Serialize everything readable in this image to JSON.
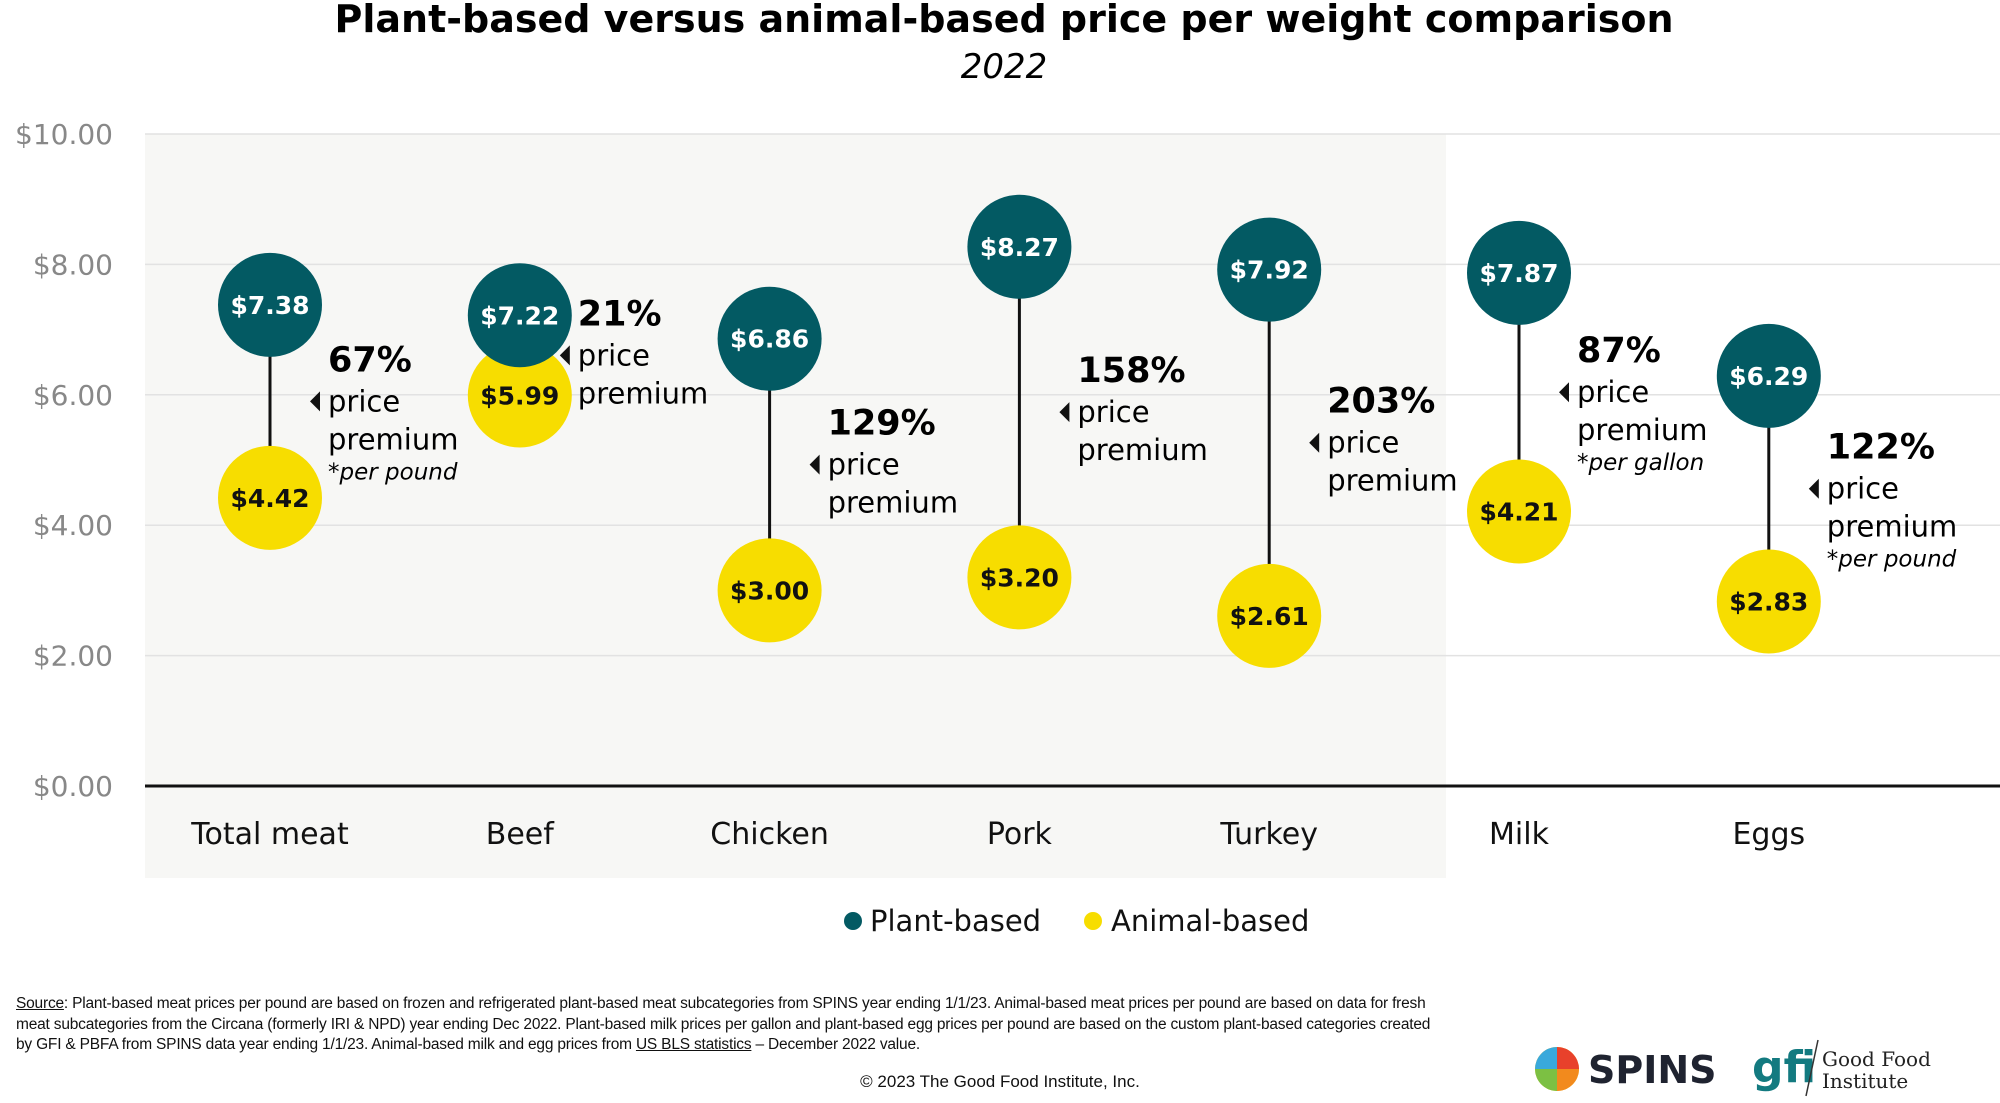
{
  "chart_data": {
    "type": "dumbbell",
    "title": "Plant-based versus animal-based price per weight comparison",
    "subtitle": "2022",
    "ylim": [
      0,
      10
    ],
    "yticks": [
      "$0.00",
      "$2.00",
      "$4.00",
      "$6.00",
      "$8.00",
      "$10.00"
    ],
    "grid": true,
    "legend_placement": "bottom",
    "categories": [
      "Total meat",
      "Beef",
      "Chicken",
      "Pork",
      "Turkey",
      "Milk",
      "Eggs"
    ],
    "series": [
      {
        "name": "Plant-based",
        "color": "#035a63",
        "values": [
          7.38,
          7.22,
          6.86,
          8.27,
          7.92,
          7.87,
          6.29
        ],
        "labels": [
          "$7.38",
          "$7.22",
          "$6.86",
          "$8.27",
          "$7.92",
          "$7.87",
          "$6.29"
        ]
      },
      {
        "name": "Animal-based",
        "color": "#f7dd00",
        "values": [
          4.42,
          5.99,
          3.0,
          3.2,
          2.61,
          4.21,
          2.83
        ],
        "labels": [
          "$4.42",
          "$5.99",
          "$3.00",
          "$3.20",
          "$2.61",
          "$4.21",
          "$2.83"
        ]
      }
    ],
    "annotations": [
      {
        "pct": "67%",
        "line1": "price",
        "line2": "premium",
        "note": "*per pound"
      },
      {
        "pct": "21%",
        "line1": "price",
        "line2": "premium",
        "note": ""
      },
      {
        "pct": "129%",
        "line1": "price",
        "line2": "premium",
        "note": ""
      },
      {
        "pct": "158%",
        "line1": "price",
        "line2": "premium",
        "note": ""
      },
      {
        "pct": "203%",
        "line1": "price",
        "line2": "premium",
        "note": ""
      },
      {
        "pct": "87%",
        "line1": "price",
        "line2": "premium",
        "note": "*per gallon"
      },
      {
        "pct": "122%",
        "line1": "price",
        "line2": "premium",
        "note": "*per pound"
      }
    ],
    "shaded_categories": [
      "Total meat",
      "Beef",
      "Chicken",
      "Pork",
      "Turkey"
    ]
  },
  "footer": {
    "source_label": "Source",
    "source_text_1": ": Plant-based meat prices per pound are based on frozen and refrigerated plant-based meat subcategories from SPINS year ending 1/1/23. Animal-based meat prices per pound are based on data for fresh meat subcategories from the Circana (formerly IRI & NPD) year ending Dec 2022. Plant-based milk prices per gallon and plant-based egg prices per pound are based on the custom plant-based categories created by GFI & PBFA from SPINS data year ending 1/1/23. Animal-based milk and egg prices from ",
    "source_link": "US BLS statistics",
    "source_text_2": " – December 2022 value.",
    "copyright": "© 2023 The Good Food Institute, Inc."
  },
  "logos": {
    "spins": "SPINS",
    "gfi": "gfi",
    "gfi_name_1": "Good Food",
    "gfi_name_2": "Institute"
  }
}
